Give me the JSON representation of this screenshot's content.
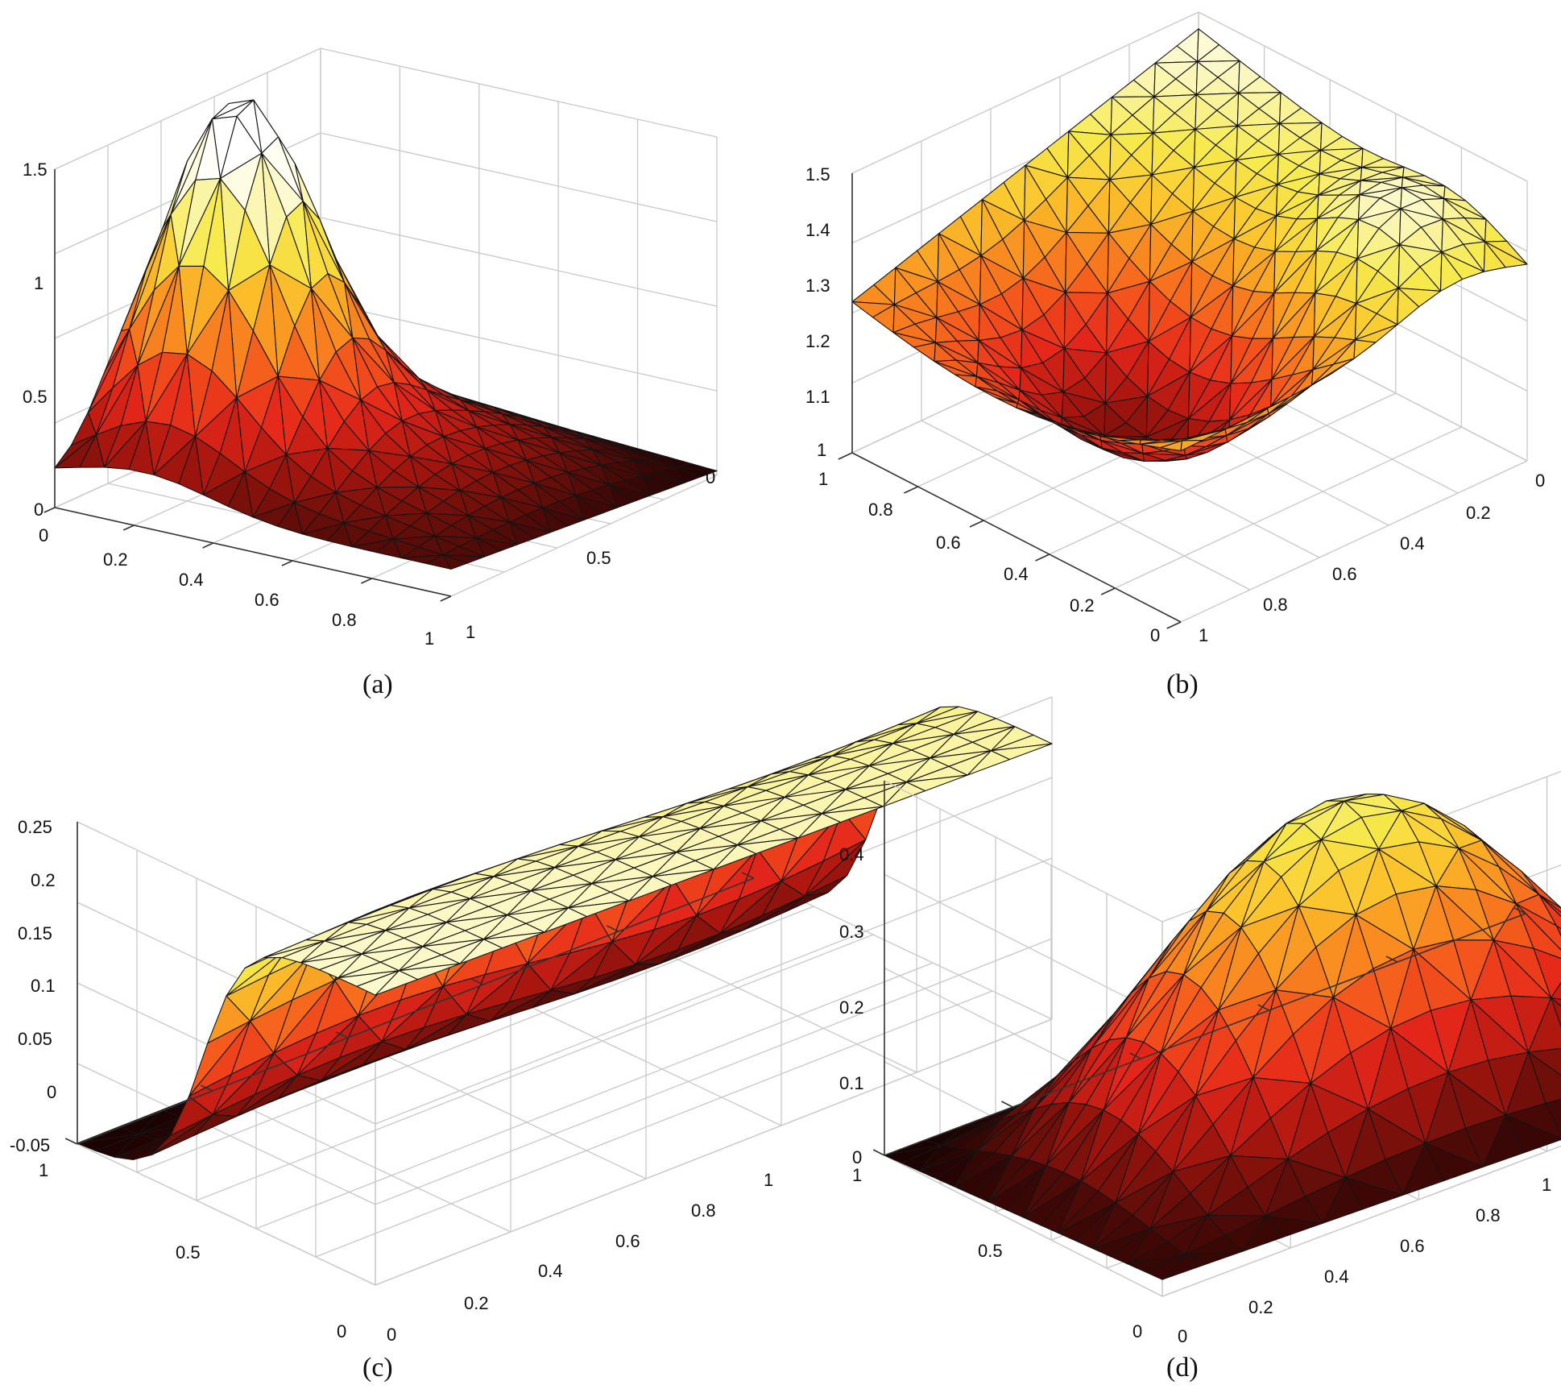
{
  "chart_data": [
    {
      "id": "a",
      "type": "surface",
      "caption": "(a)",
      "z_label_min": 0,
      "z_label_max": 1.5,
      "ylim": [
        0,
        1.5
      ],
      "z_ticks": [
        "1.5",
        "1",
        "0.5",
        "0"
      ],
      "x_ticks": [
        "0",
        "0.2",
        "0.4",
        "0.6",
        "0.8",
        "1"
      ],
      "y_ticks": [
        "0",
        "0.5",
        "1"
      ],
      "peak_value": 1.55,
      "peak_at": [
        0.25,
        0.3
      ]
    },
    {
      "id": "b",
      "type": "surface",
      "caption": "(b)",
      "ylim": [
        1,
        1.5
      ],
      "z_ticks": [
        "1.5",
        "1.4",
        "1.3",
        "1.2",
        "1.1",
        "1"
      ],
      "x_ticks": [
        "1",
        "0.8",
        "0.6",
        "0.4",
        "0.2",
        "0"
      ],
      "y_ticks": [
        "1",
        "0.8",
        "0.6",
        "0.4",
        "0.2",
        "0"
      ],
      "min_value": 1.0,
      "max_value": 1.5
    },
    {
      "id": "c",
      "type": "surface",
      "caption": "(c)",
      "ylim": [
        -0.05,
        0.25
      ],
      "z_ticks": [
        "0.25",
        "0.2",
        "0.15",
        "0.1",
        "0.05",
        "0",
        "-0.05"
      ],
      "y_ticks": [
        "1",
        "0.5",
        "0"
      ],
      "x_ticks": [
        "0",
        "0.2",
        "0.4",
        "0.6",
        "0.8",
        "1"
      ],
      "plateau_value": 0.22,
      "floor_value": -0.05
    },
    {
      "id": "d",
      "type": "surface",
      "caption": "(d)",
      "ylim": [
        0,
        0.4
      ],
      "z_ticks": [
        "0.4",
        "0.3",
        "0.2",
        "0.1",
        "0"
      ],
      "y_ticks": [
        "1",
        "0.5",
        "0"
      ],
      "x_ticks": [
        "0",
        "0.2",
        "0.4",
        "0.6",
        "0.8",
        "1"
      ],
      "peak_value": 0.32
    }
  ],
  "colormap": [
    "#0a0000",
    "#5a0c08",
    "#a8160e",
    "#e4261a",
    "#f4541c",
    "#f98d20",
    "#fbc42c",
    "#f6ea4c",
    "#fcf8c4",
    "#ffffff"
  ]
}
